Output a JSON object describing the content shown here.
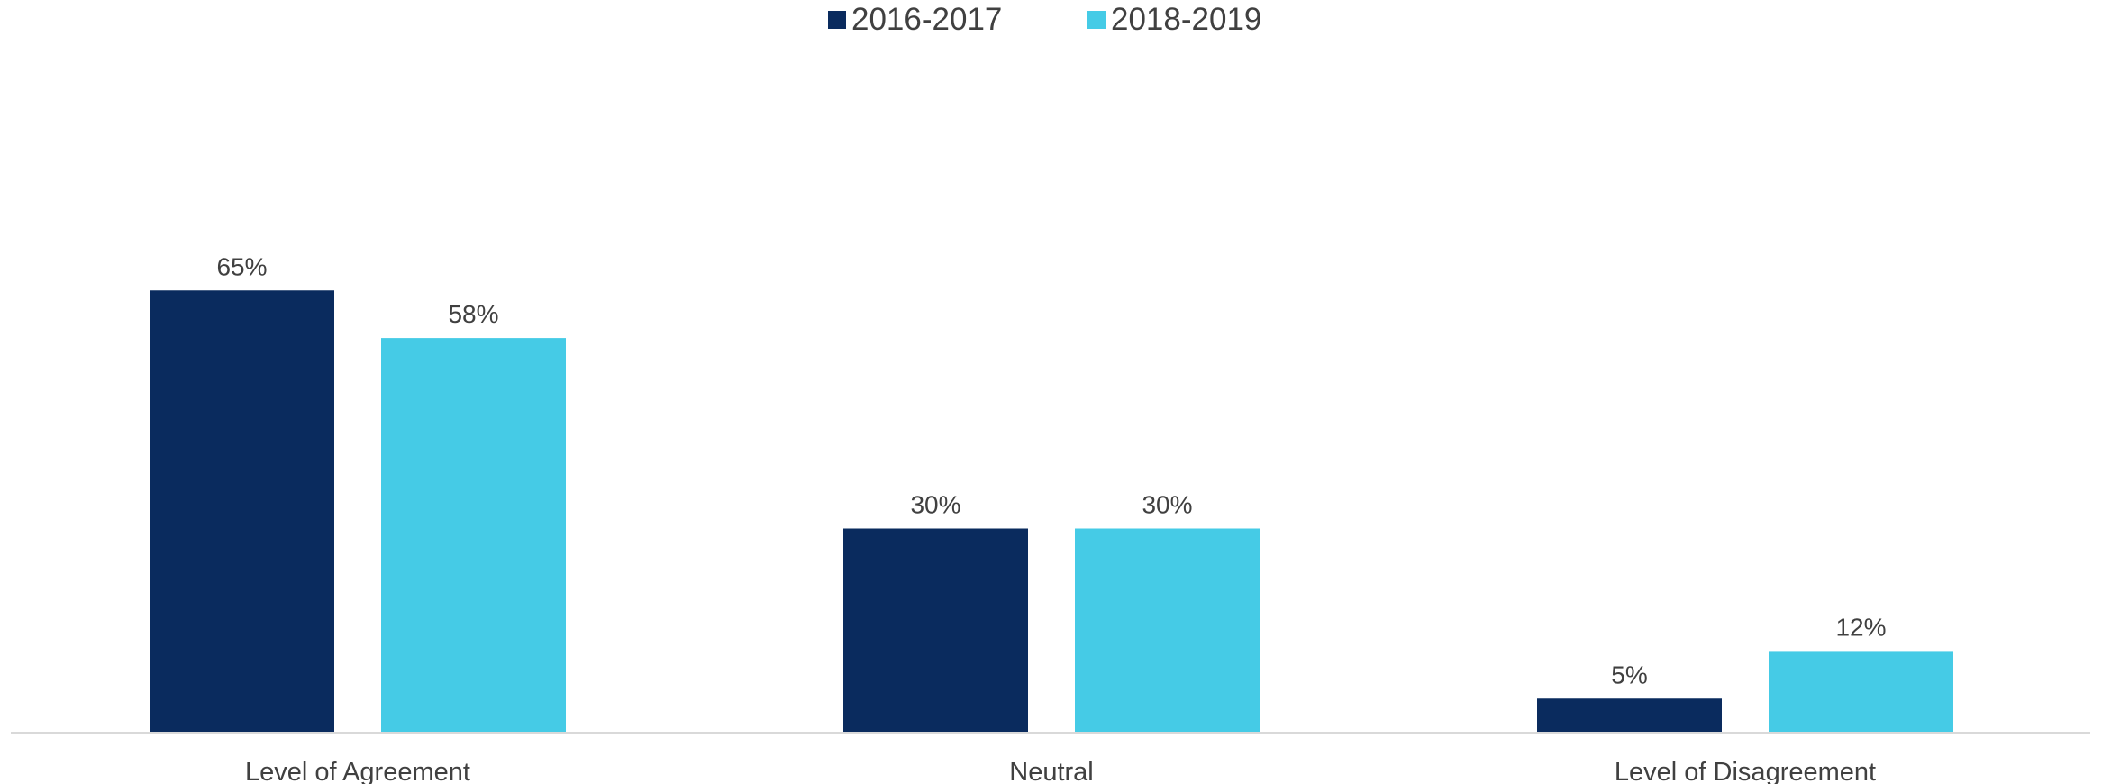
{
  "chart_data": {
    "type": "bar",
    "title": "",
    "xlabel": "",
    "ylabel": "",
    "categories": [
      "Level of Agreement",
      "Neutral",
      "Level of Disagreement"
    ],
    "series": [
      {
        "name": "2016-2017",
        "color": "#0a2b5e",
        "values": [
          65,
          30,
          5
        ],
        "labels": [
          "65%",
          "30%",
          "5%"
        ]
      },
      {
        "name": "2018-2019",
        "color": "#45cbe6",
        "values": [
          58,
          30,
          12
        ],
        "labels": [
          "58%",
          "30%",
          "12%"
        ]
      }
    ],
    "ylim": [
      0,
      70
    ],
    "grid": false,
    "legend_position": "top-center",
    "y_axis_visible": false
  }
}
